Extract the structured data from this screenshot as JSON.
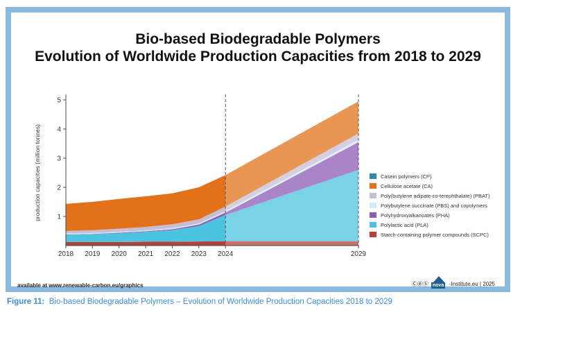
{
  "chart_data": {
    "type": "area",
    "stacked": true,
    "title": "Bio-based Biodegradable Polymers",
    "subtitle": "Evolution of Worldwide Production Capacities from 2018 to 2029",
    "xlabel": "",
    "ylabel": "production capacities (million tonnes)",
    "ylim": [
      0,
      5
    ],
    "yticks": [
      "1",
      "2",
      "3",
      "4",
      "5"
    ],
    "x": [
      2018,
      2019,
      2020,
      2021,
      2022,
      2023,
      2024,
      2029
    ],
    "xtick_labels": [
      "2018",
      "2019",
      "2020",
      "2021",
      "2022",
      "2023",
      "2024",
      "2029"
    ],
    "forecast_from": 2024,
    "series": [
      {
        "name": "Starch-containing polymer compounds (SCPC)",
        "color": "#b5403a",
        "values": [
          0.12,
          0.12,
          0.12,
          0.13,
          0.13,
          0.14,
          0.15,
          0.15
        ]
      },
      {
        "name": "Polylactic acid (PLA)",
        "color": "#4ec3df",
        "values": [
          0.25,
          0.27,
          0.3,
          0.34,
          0.4,
          0.53,
          0.9,
          2.45
        ]
      },
      {
        "name": "Polyhydroxyalkanoates (PHA)",
        "color": "#8e5bb5",
        "values": [
          0.01,
          0.01,
          0.02,
          0.02,
          0.03,
          0.05,
          0.08,
          0.95
        ]
      },
      {
        "name": "Polybutylene succinate (PBS) and copolymers",
        "color": "#d4ecf5",
        "values": [
          0.03,
          0.03,
          0.03,
          0.03,
          0.04,
          0.04,
          0.05,
          0.08
        ]
      },
      {
        "name": "Poly(butylene adipate-co-terephthalate) (PBAT)",
        "color": "#c8bdd7",
        "values": [
          0.09,
          0.1,
          0.11,
          0.12,
          0.13,
          0.14,
          0.16,
          0.22
        ]
      },
      {
        "name": "Cellulose acetate (CA)",
        "color": "#e2711a",
        "values": [
          0.93,
          0.97,
          1.02,
          1.05,
          1.06,
          1.1,
          1.08,
          1.1
        ]
      },
      {
        "name": "Casein polymers (CP)",
        "color": "#2e8aa6",
        "values": [
          0.0,
          0.0,
          0.0,
          0.0,
          0.0,
          0.0,
          0.0,
          0.0
        ]
      }
    ]
  },
  "legend_order": [
    6,
    5,
    4,
    3,
    2,
    1,
    0
  ],
  "footer": {
    "source": "available at www.renewable-carbon.eu/graphics",
    "license_icons": "ⒸⒷⓈ",
    "logo_text": "nova",
    "publisher": "-Institute.eu | 2025"
  },
  "caption": {
    "label": "Figure 11:",
    "text": "Bio-based Biodegradable Polymers – Evolution of Worldwide Production Capacities 2018 to 2029"
  }
}
